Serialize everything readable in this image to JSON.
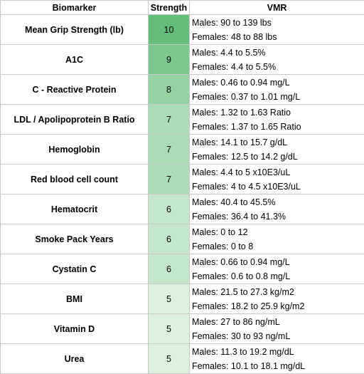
{
  "table": {
    "header": [
      "Biomarker",
      "Strength",
      "VMR"
    ],
    "rows": [
      {
        "biomarker": "Mean Grip Strength (lb)",
        "strength": 10,
        "color": "#63be7b",
        "vmr": [
          "Males: 90 to 139 lbs",
          "Females: 48 to 88 lbs"
        ]
      },
      {
        "biomarker": "A1C",
        "strength": 9,
        "color": "#7bc88e",
        "vmr": [
          "Males: 4.4 to 5.5%",
          "Females: 4.4 to 5.5%"
        ]
      },
      {
        "biomarker": "C - Reactive Protein",
        "strength": 8,
        "color": "#94d2a2",
        "vmr": [
          "Males: 0.46 to 0.94 mg/L",
          "Females: 0.37 to 1.01 mg/L"
        ]
      },
      {
        "biomarker": "LDL / Apolipoprotein B Ratio",
        "strength": 7,
        "color": "#acdcb6",
        "vmr": [
          "Males: 1.32 to 1.63 Ratio",
          "Females: 1.37 to 1.65 Ratio"
        ]
      },
      {
        "biomarker": "Hemoglobin",
        "strength": 7,
        "color": "#acdcb6",
        "vmr": [
          "Males: 14.1 to 15.7 g/dL",
          "Females: 12.5 to 14.2 g/dL"
        ]
      },
      {
        "biomarker": "Red blood cell count",
        "strength": 7,
        "color": "#acdcb6",
        "vmr": [
          "Males: 4.4 to 5 x10E3/uL",
          "Females: 4 to 4.5 x10E3/uL"
        ]
      },
      {
        "biomarker": "Hematocrit",
        "strength": 6,
        "color": "#c4e6ca",
        "vmr": [
          "Males: 40.4 to 45.5%",
          "Females: 36.4 to 41.3%"
        ]
      },
      {
        "biomarker": "Smoke Pack Years",
        "strength": 6,
        "color": "#c4e6ca",
        "vmr": [
          "Males: 0 to 12",
          "Females: 0 to 8"
        ]
      },
      {
        "biomarker": "Cystatin C",
        "strength": 6,
        "color": "#c4e6ca",
        "vmr": [
          "Males: 0.66 to 0.94 mg/L",
          "Females: 0.6 to 0.8 mg/L"
        ]
      },
      {
        "biomarker": "BMI",
        "strength": 5,
        "color": "#dcf0de",
        "vmr": [
          "Males: 21.5 to 27.3 kg/m2",
          "Females: 18.2 to 25.9 kg/m2"
        ]
      },
      {
        "biomarker": "Vitamin D",
        "strength": 5,
        "color": "#dcf0de",
        "vmr": [
          "Males: 27 to 86 ng/mL",
          "Females: 30 to 93 ng/mL"
        ]
      },
      {
        "biomarker": "Urea",
        "strength": 5,
        "color": "#dcf0de",
        "vmr": [
          "Males: 11.3 to 19.2 mg/dL",
          "Females: 10.1 to 18.1 mg/dL"
        ]
      }
    ]
  }
}
